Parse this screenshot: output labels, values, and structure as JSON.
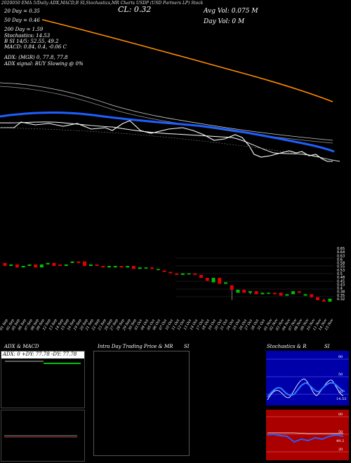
{
  "header": {
    "top_line": "2020050 EMA 5/Daily ADX,MACD,B SI,Stochastics,MR Charts USDP (USD Partners LP) Stock",
    "cl_label": "CL: 0.32",
    "avg_vol": "Avg Vol: 0.075 M",
    "day_vol": "Day Vol: 0   M",
    "ema20": "20  Day = 0.35",
    "ema50": "50  Day = 0.46",
    "ema200": "200  Day = 1.59",
    "stochastics": "Stochastics: 14.53",
    "si": "B            SI 14/5: 52.55, 49.2",
    "macd": "MACD: 0.84,  0.4, -0.06  C",
    "adx": "ADX:                              (MGR) 0, 77.8,  77.8",
    "adx_signal": "ADX  signal:                            BUY Slowing @ 0%"
  },
  "colors": {
    "bg": "#000000",
    "ema200": "#ff8c00",
    "ema50": "#1f5fff",
    "up": "#00c000",
    "down": "#e00000",
    "panel_blue": "#0000aa",
    "panel_red": "#aa0000"
  },
  "price_axis": {
    "labels": [
      "0.65",
      "0.64",
      "0.63",
      "0.6",
      "0.58",
      "0.55",
      "0.53",
      "0.5",
      "0.48",
      "0.45",
      "0.43",
      "0.4",
      "0.38",
      "0.35",
      "0.32"
    ]
  },
  "date_labels": [
    "01 Sep",
    "02 Sep",
    "05 Sep",
    "06 Sep",
    "07 Sep",
    "08 Sep",
    "09 Sep",
    "12 Sep",
    "13 Sep",
    "14 Sep",
    "15 Sep",
    "16 Sep",
    "19 Sep",
    "20 Sep",
    "21 Sep",
    "22 Sep",
    "23 Sep",
    "26 Sep",
    "27 Sep",
    "28 Sep",
    "29 Sep",
    "30 Sep",
    "03 Oct",
    "04 Oct",
    "05 Oct",
    "06 Oct",
    "07 Oct",
    "10 Oct",
    "11 Oct",
    "12 Oct",
    "13 Oct",
    "14 Oct",
    "17 Oct",
    "18 Oct",
    "19 Oct",
    "20 Oct",
    "21 Oct",
    "24 Oct",
    "25 Oct",
    "26 Oct",
    "27 Oct",
    "28 Oct",
    "31 Oct",
    "01 Nov",
    "02 Nov",
    "03 Nov",
    "04 Nov",
    "07 Nov",
    "08 Nov",
    "09 Nov",
    "10 Nov",
    "11 Nov",
    "14 Nov",
    "15 Nov"
  ],
  "panels": {
    "adx_title": "ADX  & MACD",
    "adx_readout": "ADX: 0  +DY: 77.78  -DY: 77.78",
    "mr_title": "Intra  Day Trading Price  & MR",
    "mr_si": "SI",
    "stoch_title": "Stochastics & R",
    "stoch_si": "SI",
    "stoch_axis": [
      "80",
      "50",
      "20"
    ],
    "stoch_value": "14.53",
    "si_axis": [
      "80",
      "50",
      "20"
    ],
    "si_value": "49.2"
  },
  "chart_data": {
    "type": "candlestick",
    "ylim": [
      0.32,
      0.65
    ],
    "x": [
      "01 Sep",
      "02 Sep",
      "05 Sep",
      "06 Sep",
      "07 Sep",
      "08 Sep",
      "09 Sep",
      "12 Sep",
      "13 Sep",
      "14 Sep",
      "15 Sep",
      "16 Sep",
      "19 Sep",
      "20 Sep",
      "21 Sep",
      "22 Sep",
      "23 Sep",
      "26 Sep",
      "27 Sep",
      "28 Sep",
      "29 Sep",
      "30 Sep",
      "03 Oct",
      "04 Oct",
      "05 Oct",
      "06 Oct",
      "07 Oct",
      "10 Oct",
      "11 Oct",
      "12 Oct",
      "13 Oct",
      "14 Oct",
      "17 Oct",
      "18 Oct",
      "19 Oct",
      "20 Oct",
      "21 Oct",
      "24 Oct",
      "25 Oct",
      "26 Oct",
      "27 Oct",
      "28 Oct",
      "31 Oct",
      "01 Nov",
      "02 Nov",
      "03 Nov",
      "04 Nov",
      "07 Nov",
      "08 Nov",
      "09 Nov",
      "10 Nov",
      "11 Nov",
      "14 Nov",
      "15 Nov"
    ],
    "open": [
      0.58,
      0.56,
      0.57,
      0.55,
      0.56,
      0.57,
      0.55,
      0.57,
      0.58,
      0.57,
      0.56,
      0.58,
      0.59,
      0.59,
      0.56,
      0.57,
      0.56,
      0.55,
      0.55,
      0.56,
      0.55,
      0.56,
      0.54,
      0.55,
      0.55,
      0.54,
      0.53,
      0.52,
      0.51,
      0.5,
      0.51,
      0.51,
      0.5,
      0.48,
      0.45,
      0.48,
      0.44,
      0.43,
      0.38,
      0.4,
      0.38,
      0.39,
      0.37,
      0.38,
      0.38,
      0.38,
      0.36,
      0.37,
      0.39,
      0.36,
      0.37,
      0.35,
      0.33,
      0.32
    ],
    "close": [
      0.56,
      0.57,
      0.55,
      0.56,
      0.57,
      0.55,
      0.57,
      0.58,
      0.56,
      0.56,
      0.57,
      0.59,
      0.58,
      0.56,
      0.57,
      0.56,
      0.55,
      0.56,
      0.56,
      0.55,
      0.56,
      0.54,
      0.55,
      0.55,
      0.54,
      0.54,
      0.52,
      0.51,
      0.5,
      0.51,
      0.51,
      0.5,
      0.48,
      0.46,
      0.48,
      0.44,
      0.45,
      0.4,
      0.4,
      0.38,
      0.39,
      0.37,
      0.38,
      0.38,
      0.37,
      0.36,
      0.37,
      0.39,
      0.38,
      0.37,
      0.35,
      0.33,
      0.32,
      0.34
    ],
    "high": [
      0.58,
      0.57,
      0.57,
      0.56,
      0.57,
      0.57,
      0.57,
      0.58,
      0.58,
      0.57,
      0.57,
      0.59,
      0.59,
      0.59,
      0.57,
      0.57,
      0.56,
      0.56,
      0.56,
      0.56,
      0.56,
      0.56,
      0.55,
      0.55,
      0.55,
      0.54,
      0.53,
      0.52,
      0.51,
      0.51,
      0.51,
      0.51,
      0.5,
      0.48,
      0.48,
      0.48,
      0.45,
      0.43,
      0.4,
      0.4,
      0.39,
      0.39,
      0.38,
      0.38,
      0.38,
      0.38,
      0.37,
      0.39,
      0.39,
      0.37,
      0.37,
      0.35,
      0.34,
      0.34
    ],
    "low": [
      0.56,
      0.56,
      0.55,
      0.55,
      0.56,
      0.55,
      0.55,
      0.57,
      0.56,
      0.56,
      0.56,
      0.58,
      0.58,
      0.56,
      0.56,
      0.56,
      0.55,
      0.55,
      0.55,
      0.55,
      0.55,
      0.54,
      0.54,
      0.54,
      0.54,
      0.53,
      0.52,
      0.51,
      0.5,
      0.5,
      0.5,
      0.5,
      0.48,
      0.46,
      0.45,
      0.44,
      0.44,
      0.33,
      0.38,
      0.38,
      0.37,
      0.37,
      0.37,
      0.37,
      0.37,
      0.36,
      0.36,
      0.37,
      0.38,
      0.36,
      0.35,
      0.33,
      0.32,
      0.32
    ]
  }
}
